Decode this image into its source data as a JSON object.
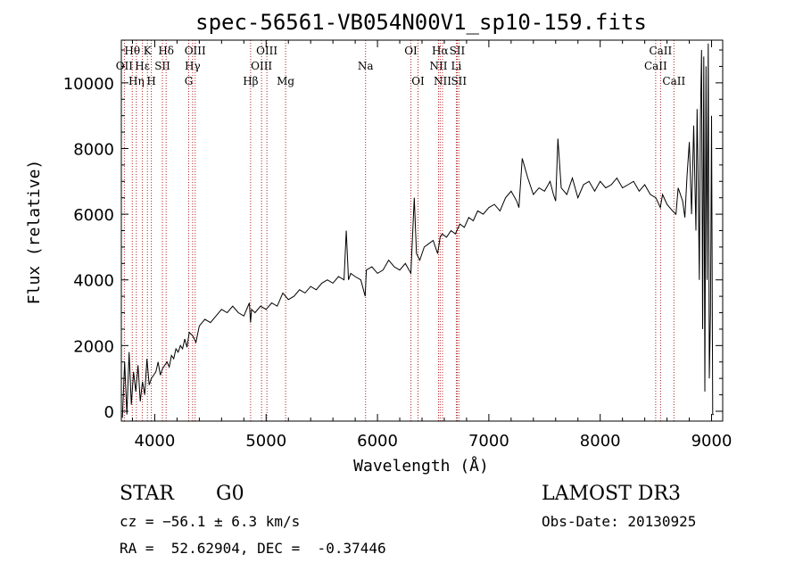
{
  "chart_data": {
    "type": "line",
    "title": "spec-56561-VB054N00V1_sp10-159.fits",
    "xlabel": "Wavelength (Å)",
    "ylabel": "Flux (relative)",
    "xlim": [
      3700,
      9100
    ],
    "ylim": [
      -300,
      11300
    ],
    "x_ticks": [
      4000,
      5000,
      6000,
      7000,
      8000,
      9000
    ],
    "x_tick_labels": [
      "4000",
      "5000",
      "6000",
      "7000",
      "8000",
      "9000"
    ],
    "y_ticks": [
      0,
      2000,
      4000,
      6000,
      8000,
      10000
    ],
    "y_tick_labels": [
      "0",
      "2000",
      "4000",
      "6000",
      "8000",
      "10000"
    ],
    "line_color": "#000000",
    "marker_color": "#b22222",
    "series": [
      {
        "name": "spectrum",
        "x": [
          3710,
          3730,
          3750,
          3770,
          3790,
          3810,
          3830,
          3850,
          3870,
          3890,
          3910,
          3930,
          3950,
          3970,
          3990,
          4010,
          4030,
          4050,
          4070,
          4090,
          4110,
          4130,
          4150,
          4170,
          4190,
          4210,
          4230,
          4250,
          4270,
          4290,
          4310,
          4340,
          4370,
          4400,
          4450,
          4500,
          4550,
          4600,
          4650,
          4700,
          4750,
          4800,
          4850,
          4860,
          4870,
          4900,
          4950,
          5000,
          5050,
          5100,
          5150,
          5200,
          5250,
          5300,
          5350,
          5400,
          5450,
          5500,
          5550,
          5600,
          5650,
          5700,
          5720,
          5740,
          5760,
          5800,
          5850,
          5890,
          5900,
          5950,
          6000,
          6050,
          6100,
          6150,
          6200,
          6250,
          6300,
          6330,
          6350,
          6380,
          6420,
          6460,
          6500,
          6540,
          6563,
          6580,
          6620,
          6660,
          6700,
          6740,
          6780,
          6820,
          6860,
          6900,
          6950,
          7000,
          7050,
          7100,
          7150,
          7200,
          7250,
          7270,
          7300,
          7350,
          7400,
          7450,
          7500,
          7550,
          7580,
          7600,
          7620,
          7650,
          7700,
          7750,
          7800,
          7850,
          7900,
          7950,
          8000,
          8050,
          8100,
          8150,
          8200,
          8250,
          8300,
          8350,
          8400,
          8450,
          8500,
          8540,
          8560,
          8600,
          8650,
          8680,
          8700,
          8740,
          8760,
          8780,
          8800,
          8820,
          8840,
          8860,
          8870,
          8880,
          8890,
          8900,
          8910,
          8920,
          8930,
          8940,
          8950,
          8960,
          8970,
          8980,
          8990,
          9000,
          9010,
          9020
        ],
        "y": [
          -200,
          1500,
          -100,
          1800,
          200,
          1200,
          600,
          1400,
          300,
          900,
          500,
          1600,
          800,
          1000,
          1100,
          1200,
          1500,
          1100,
          1300,
          1400,
          1500,
          1350,
          1700,
          1600,
          1900,
          1800,
          2000,
          1900,
          2200,
          1950,
          2400,
          2300,
          2100,
          2600,
          2800,
          2700,
          2900,
          3100,
          3000,
          3200,
          3000,
          2900,
          3300,
          2700,
          3100,
          3000,
          3200,
          3100,
          3300,
          3200,
          3600,
          3400,
          3500,
          3700,
          3600,
          3800,
          3700,
          3900,
          4000,
          3900,
          4100,
          4000,
          5500,
          4000,
          4200,
          4100,
          4000,
          3500,
          4300,
          4400,
          4200,
          4300,
          4600,
          4400,
          4300,
          4500,
          4200,
          6500,
          4800,
          4600,
          5000,
          5100,
          5200,
          4800,
          5300,
          5400,
          5300,
          5500,
          5400,
          5700,
          5600,
          5900,
          5800,
          6100,
          6000,
          6200,
          6300,
          6100,
          6500,
          6700,
          6400,
          6200,
          7700,
          7100,
          6600,
          6800,
          6700,
          7000,
          6600,
          6400,
          8300,
          6800,
          6600,
          7100,
          6500,
          6900,
          7000,
          6700,
          7000,
          6800,
          6900,
          7100,
          6800,
          6900,
          7000,
          6700,
          6900,
          6600,
          6500,
          6200,
          6600,
          6300,
          6100,
          6000,
          6800,
          6400,
          5900,
          7200,
          8200,
          6000,
          8700,
          5500,
          9200,
          7000,
          4000,
          8800,
          11000,
          2500,
          10800,
          600,
          10500,
          4000,
          11200,
          1000,
          3000,
          9000,
          -100,
          -100
        ]
      }
    ],
    "line_markers": [
      {
        "label": "Hθ",
        "x": 3798,
        "row": 1
      },
      {
        "label": "OII",
        "x": 3727,
        "row": 2
      },
      {
        "label": "Hη",
        "x": 3835,
        "row": 3
      },
      {
        "label": "K",
        "x": 3934,
        "row": 1
      },
      {
        "label": "Hε",
        "x": 3889,
        "row": 2
      },
      {
        "label": "H",
        "x": 3969,
        "row": 3
      },
      {
        "label": "Hδ",
        "x": 4102,
        "row": 1
      },
      {
        "label": "SII",
        "x": 4069,
        "row": 2
      },
      {
        "label": "OIII",
        "x": 4363,
        "row": 1
      },
      {
        "label": "Hγ",
        "x": 4340,
        "row": 2
      },
      {
        "label": "G",
        "x": 4305,
        "row": 3
      },
      {
        "label": "Hβ",
        "x": 4861,
        "row": 3
      },
      {
        "label": "OIII",
        "x": 5007,
        "row": 1
      },
      {
        "label": "OIII",
        "x": 4959,
        "row": 2
      },
      {
        "label": "Mg",
        "x": 5175,
        "row": 3
      },
      {
        "label": "Na",
        "x": 5893,
        "row": 2
      },
      {
        "label": "OI",
        "x": 6300,
        "row": 1
      },
      {
        "label": "OI",
        "x": 6364,
        "row": 3
      },
      {
        "label": "Hα",
        "x": 6563,
        "row": 1
      },
      {
        "label": "SII",
        "x": 6716,
        "row": 1
      },
      {
        "label": "NII",
        "x": 6548,
        "row": 2
      },
      {
        "label": "Li",
        "x": 6708,
        "row": 2
      },
      {
        "label": "NII",
        "x": 6584,
        "row": 3
      },
      {
        "label": "SII",
        "x": 6731,
        "row": 3
      },
      {
        "label": "CaII",
        "x": 8542,
        "row": 1
      },
      {
        "label": "CaII",
        "x": 8498,
        "row": 2
      },
      {
        "label": "CaII",
        "x": 8662,
        "row": 3
      }
    ]
  },
  "info": {
    "object_class": "STAR",
    "subclass": "G0",
    "survey": "LAMOST DR3",
    "cz": "cz = −56.1 ± 6.3 km/s",
    "obs_date": "Obs-Date: 20130925",
    "coords": "RA =  52.62904, DEC =  -0.37446"
  }
}
